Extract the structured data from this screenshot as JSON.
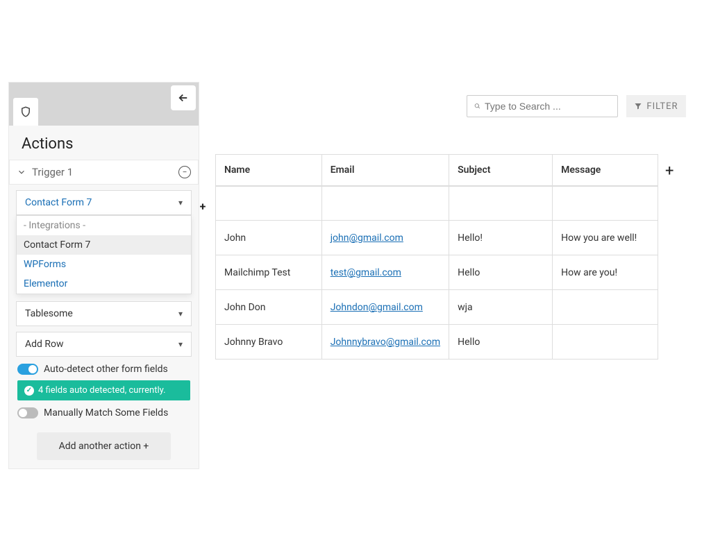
{
  "sidebar": {
    "title": "Actions",
    "trigger_label": "Trigger 1",
    "integration_select": "Contact Form 7",
    "dropdown": {
      "group": "- Integrations -",
      "options": [
        "Contact Form 7",
        "WPForms",
        "Elementor"
      ],
      "active_index": 0
    },
    "action_store": "Tablesome",
    "action_op": "Add Row",
    "auto_detect_label": "Auto-detect other form fields",
    "detect_banner": "4 fields auto detected, currently.",
    "manual_match_label": "Manually Match Some Fields",
    "add_action_label": "Add another action +"
  },
  "search": {
    "placeholder": "Type to Search ..."
  },
  "filter_label": "FILTER",
  "table": {
    "columns": [
      "Name",
      "Email",
      "Subject",
      "Message"
    ],
    "rows": [
      {
        "name": "John",
        "email": "john@gmail.com",
        "subject": "Hello!",
        "message": "How you are well!"
      },
      {
        "name": "Mailchimp Test",
        "email": "test@gmail.com",
        "subject": "Hello",
        "message": "How are you!"
      },
      {
        "name": "John Don",
        "email": "Johndon@gmail.com",
        "subject": "wja",
        "message": ""
      },
      {
        "name": "Johnny Bravo",
        "email": "Johnnybravo@gmail.com",
        "subject": "Hello",
        "message": ""
      }
    ]
  },
  "colors": {
    "link": "#1a6fb5",
    "banner": "#1abc9c",
    "toggle_on": "#2aa0df"
  }
}
